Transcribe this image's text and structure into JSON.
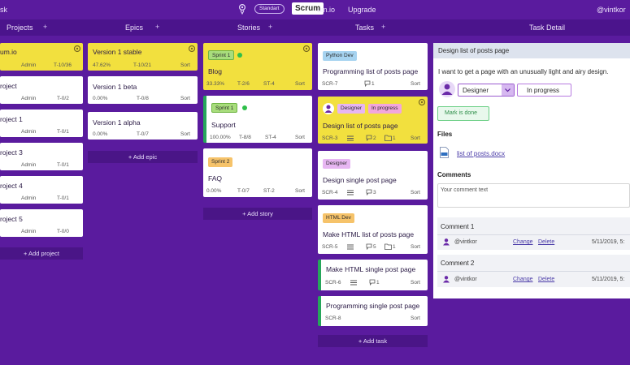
{
  "topbar": {
    "left_text": "sk",
    "mode_badge": "Standart",
    "logo_text": "Scrum",
    "logo_rest": "um.io",
    "upgrade": "Upgrade",
    "user": "@vintkor"
  },
  "columns": {
    "projects": "Projects",
    "epics": "Epics",
    "stories": "Stories",
    "tasks": "Tasks",
    "detail": "Task Detail",
    "plus": "+"
  },
  "projects": [
    {
      "name": "um.io",
      "owner": "Admin",
      "count": "T-10/36",
      "sort": "Sort"
    },
    {
      "name": "roject",
      "owner": "Admin",
      "count": "T-0/2"
    },
    {
      "name": "roject 1",
      "owner": "Admin",
      "count": "T-0/1"
    },
    {
      "name": "roject 3",
      "owner": "Admin",
      "count": "T-0/1"
    },
    {
      "name": "roject 4",
      "owner": "Admin",
      "count": "T-0/1"
    },
    {
      "name": "roject 5",
      "owner": "Admin",
      "count": "T-0/0"
    }
  ],
  "add_project": "+ Add project",
  "epics": [
    {
      "name": "Version 1 stable",
      "pct": "47.62%",
      "count": "T-10/21",
      "sort": "Sort"
    },
    {
      "name": "Version 1 beta",
      "pct": "0.00%",
      "count": "T-0/8",
      "sort": "Sort"
    },
    {
      "name": "Version 1 alpha",
      "pct": "0.00%",
      "count": "T-0/7",
      "sort": "Sort"
    }
  ],
  "add_epic": "+ Add epic",
  "stories": [
    {
      "tag": "Sprint 1",
      "name": "Blog",
      "pct": "33.33%",
      "count": "T-2/6",
      "code": "ST-4",
      "sort": "Sort"
    },
    {
      "tag": "Sprint 1",
      "name": "Support",
      "pct": "100.00%",
      "count": "T-8/8",
      "code": "ST-4",
      "sort": "Sort"
    },
    {
      "tag": "Sprint 2",
      "name": "FAQ",
      "pct": "0.00%",
      "count": "T-0/7",
      "code": "ST-2",
      "sort": "Sort"
    }
  ],
  "add_story": "+ Add story",
  "tasks": [
    {
      "tag": "Python Dev",
      "name": "Programming list of posts page",
      "code": "SCR-7",
      "comments": "1",
      "sort": "Sort"
    },
    {
      "tag": "Designer",
      "tag2": "In progress",
      "name": "Design list of posts page",
      "code": "SCR-3",
      "comments": "2",
      "files": "1",
      "sort": "Sort"
    },
    {
      "tag": "Designer",
      "name": "Design single post page",
      "code": "SCR-4",
      "comments": "3",
      "sort": "Sort"
    },
    {
      "tag": "HTML Dev",
      "name": "Make HTML list of posts page",
      "code": "SCR-5",
      "comments": "5",
      "files": "1",
      "sort": "Sort"
    },
    {
      "name": "Make HTML single post page",
      "code": "SCR-6",
      "comments": "1",
      "sort": "Sort"
    },
    {
      "name": "Programming single post page",
      "code": "SCR-8",
      "sort": "Sort"
    }
  ],
  "add_task": "+ Add task",
  "detail": {
    "title": "Design list of posts page",
    "description": "I want to get a page with an unusually light and airy design.",
    "role": "Designer",
    "status": "In progress",
    "mark_done": "Mark is done",
    "files_label": "Files",
    "file_name": "list of posts.docx",
    "comments_label": "Comments",
    "comment_placeholder": "Your comment text",
    "comments": [
      {
        "title": "Comment 1",
        "user": "@vintkor",
        "change": "Change",
        "delete": "Delete",
        "date": "5/11/2019, 5:"
      },
      {
        "title": "Comment 2",
        "user": "@vintkor",
        "change": "Change",
        "delete": "Delete",
        "date": "5/11/2019, 5:"
      }
    ]
  },
  "colors": {
    "background": "#5a1b9e",
    "card_highlight": "#f2e03e",
    "status_green": "#26a65b"
  }
}
